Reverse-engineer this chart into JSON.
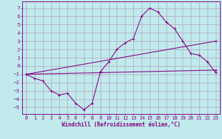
{
  "bg_color": "#c0eaec",
  "line_color": "#880088",
  "grid_color": "#b090b0",
  "xlabel": "Windchill (Refroidissement éolien,°C)",
  "xlabel_fontsize": 5.5,
  "tick_fontsize": 5.2,
  "xlim": [
    -0.5,
    23.5
  ],
  "ylim": [
    -5.8,
    7.8
  ],
  "yticks": [
    -5,
    -4,
    -3,
    -2,
    -1,
    0,
    1,
    2,
    3,
    4,
    5,
    6,
    7
  ],
  "xticks": [
    0,
    1,
    2,
    3,
    4,
    5,
    6,
    7,
    8,
    9,
    10,
    11,
    12,
    13,
    14,
    15,
    16,
    17,
    18,
    19,
    20,
    21,
    22,
    23
  ],
  "series": [
    {
      "x": [
        0,
        1,
        2,
        3,
        4,
        5,
        6,
        7,
        8,
        9,
        10,
        11,
        12,
        13,
        14,
        15,
        16,
        17,
        18,
        19,
        20,
        21,
        22,
        23
      ],
      "y": [
        -1.0,
        -1.5,
        -1.8,
        -3.0,
        -3.5,
        -3.3,
        -4.5,
        -5.3,
        -4.5,
        -0.7,
        0.5,
        2.0,
        2.8,
        3.3,
        6.0,
        7.0,
        6.5,
        5.3,
        4.5,
        3.0,
        1.5,
        1.3,
        0.5,
        -0.8
      ]
    },
    {
      "x": [
        0,
        23
      ],
      "y": [
        -1.0,
        3.0
      ]
    },
    {
      "x": [
        0,
        23
      ],
      "y": [
        -1.0,
        -0.5
      ]
    }
  ]
}
